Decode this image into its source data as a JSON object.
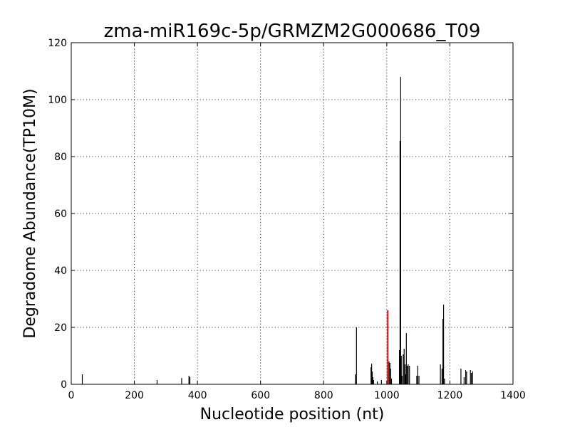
{
  "chart_data": {
    "type": "bar",
    "title": "zma-miR169c-5p/GRMZM2G000686_T09",
    "xlabel": "Nucleotide position (nt)",
    "ylabel": "Degradome Abundance(TP10M)",
    "xlim": [
      0,
      1400
    ],
    "ylim": [
      0,
      120
    ],
    "xticks": [
      0,
      200,
      400,
      600,
      800,
      1000,
      1200,
      1400
    ],
    "yticks": [
      0,
      20,
      40,
      60,
      80,
      100,
      120
    ],
    "grid": true,
    "colors": {
      "default": "#000000",
      "highlight": "#ff0000"
    },
    "series": [
      {
        "x": [
          35,
          272,
          350,
          373,
          376,
          900,
          904,
          950,
          952,
          954,
          956,
          958,
          970,
          983,
          1007,
          1010,
          1012,
          1015,
          1040,
          1042,
          1044,
          1046,
          1048,
          1052,
          1055,
          1058,
          1060,
          1062,
          1065,
          1068,
          1072,
          1095,
          1098,
          1102,
          1170,
          1175,
          1178,
          1180,
          1183,
          1235,
          1245,
          1250,
          1253,
          1265,
          1268,
          1272
        ],
        "values": [
          3.5,
          1.5,
          2.2,
          3.0,
          2.5,
          3.5,
          20.0,
          6.0,
          7.2,
          4.5,
          2.5,
          1.5,
          1.0,
          1.5,
          8.0,
          7.5,
          5.5,
          2.0,
          12.0,
          85.5,
          108.0,
          10.0,
          3.0,
          10.5,
          12.5,
          7.0,
          3.5,
          18.0,
          6.5,
          7.0,
          6.5,
          3.0,
          6.5,
          3.0,
          7.0,
          5.5,
          23.0,
          28.0,
          2.0,
          5.5,
          2.5,
          5.0,
          4.5,
          5.0,
          4.0,
          4.5
        ]
      },
      {
        "x": [
          1003
        ],
        "values": [
          26.0
        ],
        "highlight": true
      }
    ]
  }
}
